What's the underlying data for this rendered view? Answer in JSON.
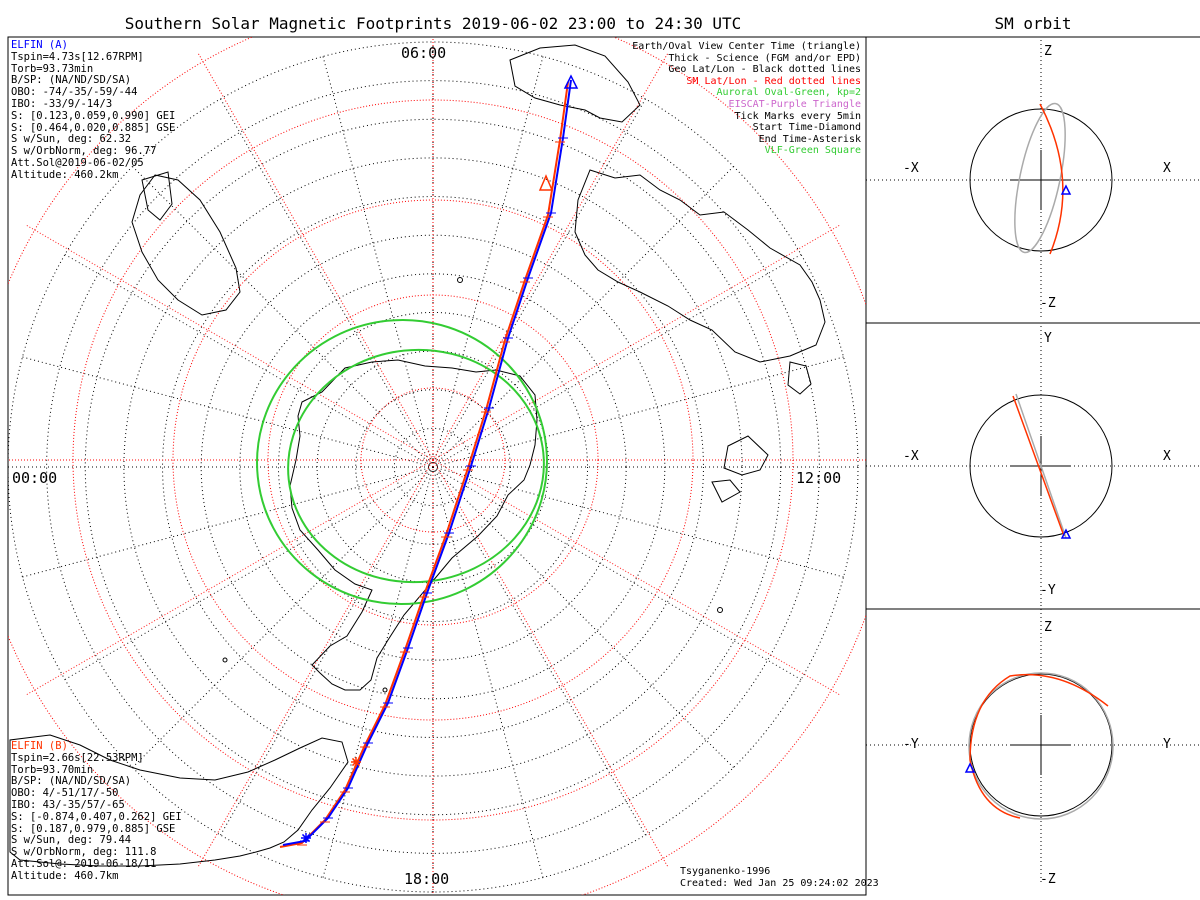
{
  "titles": {
    "main": "Southern Solar Magnetic Footprints 2019-06-02 23:00 to 24:30 UTC",
    "orbit": "SM orbit"
  },
  "clock_labels": {
    "top": "06:00",
    "left": "00:00",
    "right": "12:00",
    "bottom": "18:00"
  },
  "elfin_a": {
    "header": "ELFIN (A)",
    "lines": [
      "Tspin=4.73s[12.67RPM]",
      "Torb=93.73min",
      "B/SP: (NA/ND/SD/SA)",
      "OBO: -74/-35/-59/-44",
      "IBO: -33/9/-14/3",
      "S: [0.123,0.059,0.990] GEI",
      "S: [0.464,0.020,0.885] GSE",
      "S w/Sun, deg: 62.32",
      "S w/OrbNorm, deg: 96.77",
      "Att.Sol@2019-06-02/05",
      "Altitude: 460.2km"
    ]
  },
  "elfin_b": {
    "header": "ELFIN (B)",
    "lines": [
      "Tspin=2.66s[22.53RPM]",
      "Torb=93.70min",
      "B/SP: (NA/ND/SD/SA)",
      "OBO: 4/-51/17/-50",
      "IBO: 43/-35/57/-65",
      "S: [-0.874,0.407,0.262] GEI",
      "S: [0.187,0.979,0.885] GSE",
      "S w/Sun, deg: 79.44",
      "S w/OrbNorm, deg: 111.8",
      "Att.Sol@: 2019-06-18/11",
      "Altitude: 460.7km"
    ]
  },
  "legend": [
    {
      "text": "Earth/Oval View Center Time (triangle)",
      "color": "#000000"
    },
    {
      "text": "Thick - Science (FGM and/or EPD)",
      "color": "#000000"
    },
    {
      "text": "Geo Lat/Lon - Black dotted lines",
      "color": "#000000"
    },
    {
      "text": "SM Lat/Lon - Red dotted lines",
      "color": "#ff0000"
    },
    {
      "text": "Auroral Oval-Green, kp=2",
      "color": "#33cc33"
    },
    {
      "text": "EISCAT-Purple Triangle",
      "color": "#cc66cc"
    },
    {
      "text": "Tick Marks every 5min",
      "color": "#000000"
    },
    {
      "text": "Start Time-Diamond",
      "color": "#000000"
    },
    {
      "text": "End Time-Asterisk",
      "color": "#000000"
    },
    {
      "text": "VLF-Green Square",
      "color": "#33cc33"
    }
  ],
  "footer": {
    "model": "Tsyganenko-1996",
    "created": "Created: Wed Jan 25 09:24:02 2023"
  },
  "orbit_panels": [
    {
      "top": "Z",
      "bottom": "-Z",
      "left": "-X",
      "right": "X"
    },
    {
      "top": "Y",
      "bottom": "-Y",
      "left": "-X",
      "right": "X"
    },
    {
      "top": "Z",
      "bottom": "-Z",
      "left": "-Y",
      "right": "Y"
    }
  ],
  "colors": {
    "elfin_a": "#0000ff",
    "elfin_b": "#ff3300",
    "sm_grid": "#ff0000",
    "geo_grid": "#000000",
    "auroral_oval": "#33cc33",
    "orbit_other": "#aaaaaa"
  }
}
